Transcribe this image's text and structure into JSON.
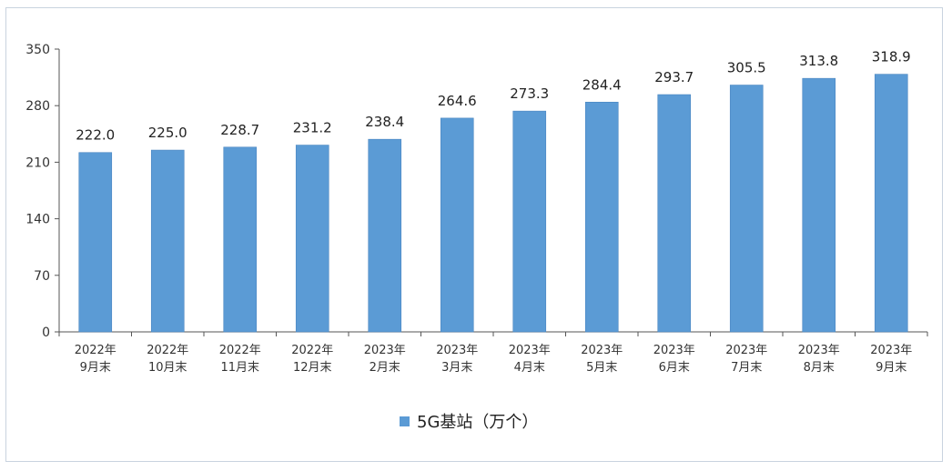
{
  "chart_data": {
    "type": "bar",
    "categories": [
      [
        "2022年",
        "9月末"
      ],
      [
        "2022年",
        "10月末"
      ],
      [
        "2022年",
        "11月末"
      ],
      [
        "2022年",
        "12月末"
      ],
      [
        "2023年",
        "2月末"
      ],
      [
        "2023年",
        "3月末"
      ],
      [
        "2023年",
        "4月末"
      ],
      [
        "2023年",
        "5月末"
      ],
      [
        "2023年",
        "6月末"
      ],
      [
        "2023年",
        "7月末"
      ],
      [
        "2023年",
        "8月末"
      ],
      [
        "2023年",
        "9月末"
      ]
    ],
    "series": [
      {
        "name": "5G基站（万个）",
        "values": [
          222.0,
          225.0,
          228.7,
          231.2,
          238.4,
          264.6,
          273.3,
          284.4,
          293.7,
          305.5,
          313.8,
          318.9
        ],
        "value_labels": [
          "222.0",
          "225.0",
          "228.7",
          "231.2",
          "238.4",
          "264.6",
          "273.3",
          "284.4",
          "293.7",
          "305.5",
          "313.8",
          "318.9"
        ]
      }
    ],
    "ylim": [
      0,
      350
    ],
    "yticks": [
      "0",
      "70",
      "140",
      "210",
      "280",
      "350"
    ],
    "grid": false,
    "legend_position": "bottom",
    "colors": {
      "bar": "#5b9bd5",
      "bar_edge": "#4a86c0",
      "axis": "#555555"
    }
  }
}
